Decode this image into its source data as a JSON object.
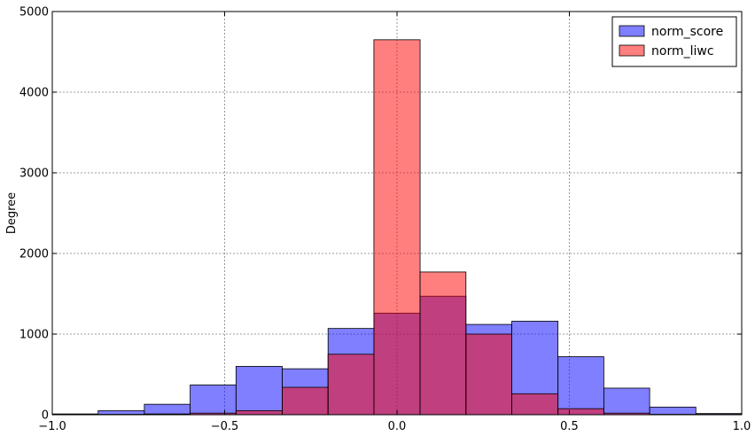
{
  "chart_data": {
    "type": "bar",
    "subtype": "overlapping-histogram",
    "title": "",
    "xlabel": "",
    "ylabel": "Degree",
    "xlim": [
      -1.0,
      1.0
    ],
    "ylim": [
      0,
      5000
    ],
    "xticks": [
      -1.0,
      -0.5,
      0.0,
      0.5,
      1.0
    ],
    "xtick_labels": [
      "−1.0",
      "−0.5",
      "0.0",
      "0.5",
      "1.0"
    ],
    "yticks": [
      0,
      1000,
      2000,
      3000,
      4000,
      5000
    ],
    "ytick_labels": [
      "0",
      "1000",
      "2000",
      "3000",
      "4000",
      "5000"
    ],
    "grid": true,
    "legend_position": "top-right",
    "bin_edges": [
      -1.0,
      -0.867,
      -0.733,
      -0.6,
      -0.467,
      -0.333,
      -0.2,
      -0.067,
      0.067,
      0.2,
      0.333,
      0.467,
      0.6,
      0.733,
      0.867,
      1.0
    ],
    "series": [
      {
        "name": "norm_score",
        "color": "#0000ff",
        "opacity": 0.5,
        "values": [
          10,
          50,
          130,
          370,
          600,
          570,
          1070,
          1260,
          1470,
          1120,
          1160,
          720,
          330,
          95,
          15
        ]
      },
      {
        "name": "norm_liwc",
        "color": "#ff0000",
        "opacity": 0.5,
        "values": [
          5,
          5,
          10,
          20,
          50,
          340,
          750,
          4650,
          1770,
          1000,
          260,
          75,
          20,
          5,
          5
        ]
      }
    ]
  }
}
